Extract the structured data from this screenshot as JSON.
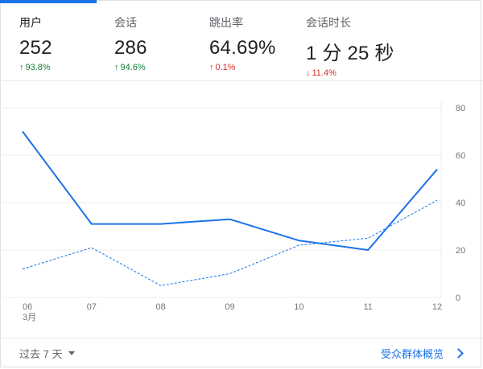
{
  "metrics": [
    {
      "label": "用户",
      "value": "252",
      "change": "93.8%",
      "direction": "up",
      "active": true
    },
    {
      "label": "会话",
      "value": "286",
      "change": "94.6%",
      "direction": "up",
      "active": false
    },
    {
      "label": "跳出率",
      "value": "64.69%",
      "change": "0.1%",
      "direction": "up-bad",
      "active": false
    },
    {
      "label": "会话时长",
      "value": "1 分 25 秒",
      "change": "11.4%",
      "direction": "down",
      "active": false
    }
  ],
  "colors": {
    "accent": "#1a73e8",
    "positive": "#188038",
    "negative": "#d93025"
  },
  "chart_data": {
    "type": "line",
    "x": [
      "06",
      "07",
      "08",
      "09",
      "10",
      "11",
      "12"
    ],
    "x_sublabel": "3月",
    "yticks": [
      0,
      20,
      40,
      60,
      80
    ],
    "ylim": [
      0,
      80
    ],
    "series": [
      {
        "values": [
          70,
          31,
          31,
          33,
          24,
          20,
          54
        ],
        "style": "solid"
      },
      {
        "values": [
          12,
          21,
          5,
          10,
          22,
          25,
          41
        ],
        "style": "dashed"
      }
    ],
    "grid": true
  },
  "footer": {
    "range_label": "过去 7 天",
    "overview_label": "受众群体概览"
  }
}
